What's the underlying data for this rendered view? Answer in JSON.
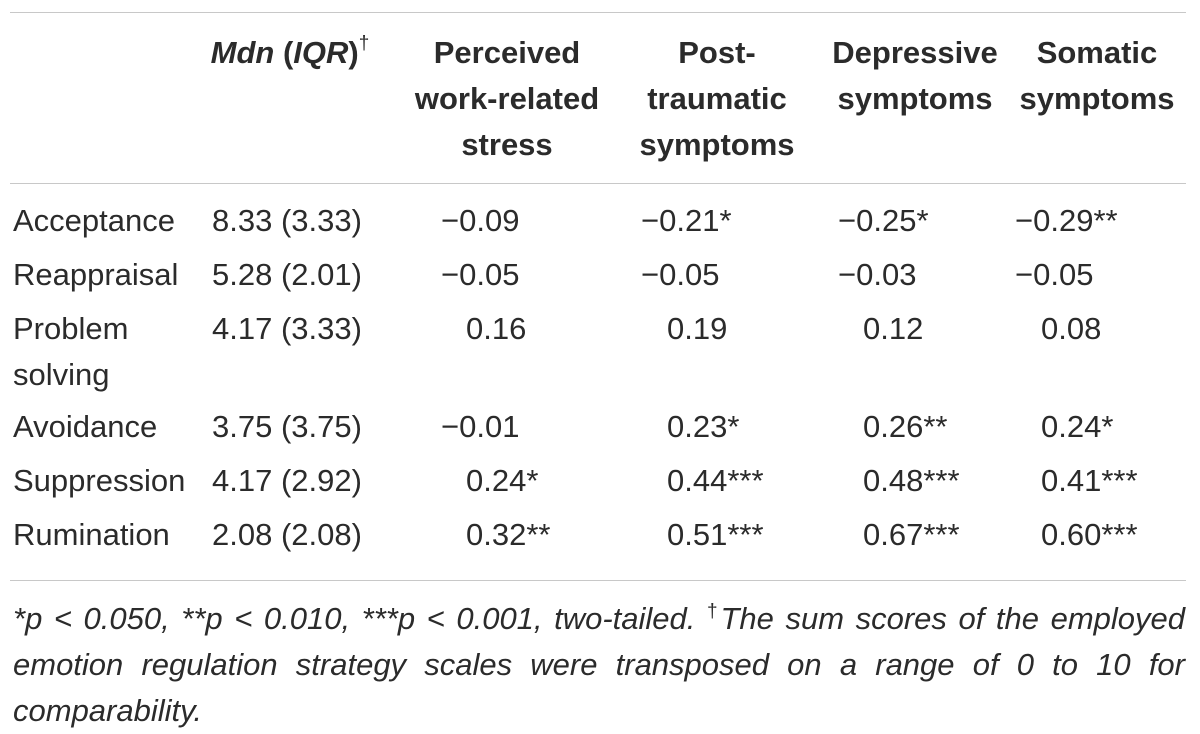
{
  "header": {
    "mdn_label": "Mdn",
    "iqr_label": "IQR",
    "dagger": "†",
    "col1": [
      "Perceived",
      "work-related",
      "stress"
    ],
    "col2": [
      "Post-",
      "traumatic",
      "symptoms"
    ],
    "col3": [
      "Depressive",
      "symptoms"
    ],
    "col4": [
      "Somatic",
      "symptoms"
    ]
  },
  "rows": [
    {
      "label": "Acceptance",
      "mdn": "8.33 (3.33)",
      "stress": "−0.09",
      "ptsd": "−0.21*",
      "depressive": "−0.25*",
      "somatic": "−0.29**"
    },
    {
      "label": "Reappraisal",
      "mdn": "5.28 (2.01)",
      "stress": "−0.05",
      "ptsd": "−0.05",
      "depressive": "−0.03",
      "somatic": "−0.05"
    },
    {
      "label": "Problem solving",
      "mdn": "4.17 (3.33)",
      "stress": "0.16",
      "ptsd": "0.19",
      "depressive": "0.12",
      "somatic": "0.08"
    },
    {
      "label": "Avoidance",
      "mdn": "3.75 (3.75)",
      "stress": "−0.01",
      "ptsd": "0.23*",
      "depressive": "0.26**",
      "somatic": "0.24*"
    },
    {
      "label": "Suppression",
      "mdn": "4.17 (2.92)",
      "stress": "0.24*",
      "ptsd": "0.44***",
      "depressive": "0.48***",
      "somatic": "0.41***"
    },
    {
      "label": "Rumination",
      "mdn": "2.08 (2.08)",
      "stress": "0.32**",
      "ptsd": "0.51***",
      "depressive": "0.67***",
      "somatic": "0.60***"
    }
  ],
  "footnote": {
    "text1": "*p < 0.050, **p < 0.010, ***p < 0.001, two-tailed. ",
    "dagger": "†",
    "text2": "The sum scores of the employed emotion regulation strategy scales were transposed on a range of 0 to 10 for comparability."
  }
}
